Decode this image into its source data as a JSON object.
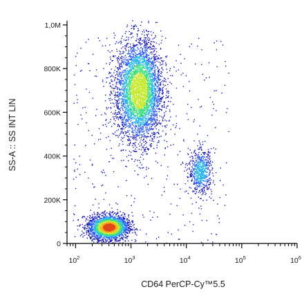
{
  "chart_data": {
    "type": "scatter",
    "subtype": "flow-cytometry-density-dot-plot",
    "title": "",
    "xlabel": "CD64 PerCP-Cy™5.5",
    "ylabel": "SS-A :: SS INT LIN",
    "x_scale": "log",
    "y_scale": "linear",
    "xlim": [
      70,
      1000000
    ],
    "ylim": [
      0,
      1000000
    ],
    "grid": false,
    "legend": "none",
    "x_ticks": [
      {
        "value": 100,
        "base": "10",
        "exp": "2"
      },
      {
        "value": 1000,
        "base": "10",
        "exp": "3"
      },
      {
        "value": 10000,
        "base": "10",
        "exp": "4"
      },
      {
        "value": 100000,
        "base": "10",
        "exp": "5"
      },
      {
        "value": 1000000,
        "base": "10",
        "exp": "6"
      }
    ],
    "y_ticks": [
      {
        "value": 0,
        "label": "0"
      },
      {
        "value": 200000,
        "label": "200K"
      },
      {
        "value": 400000,
        "label": "400K"
      },
      {
        "value": 600000,
        "label": "600K"
      },
      {
        "value": 800000,
        "label": "800K"
      },
      {
        "value": 1000000,
        "label": "1,0M"
      }
    ],
    "density_colors": [
      "#1010b0",
      "#2a5cf0",
      "#25b6e6",
      "#40e080",
      "#c8e832",
      "#f5b020",
      "#e04818"
    ],
    "populations": [
      {
        "cx": 400,
        "cy": 75000,
        "sx_log": 0.17,
        "sy": 28000,
        "count": 2600,
        "peak_color": "#e04818"
      },
      {
        "cx": 1400,
        "cy": 700000,
        "sx_log": 0.2,
        "sy": 115000,
        "count": 4200,
        "peak_color": "#c8e832"
      },
      {
        "cx": 18000,
        "cy": 330000,
        "sx_log": 0.1,
        "sy": 50000,
        "count": 650,
        "peak_color": "#25b6e6"
      }
    ]
  }
}
